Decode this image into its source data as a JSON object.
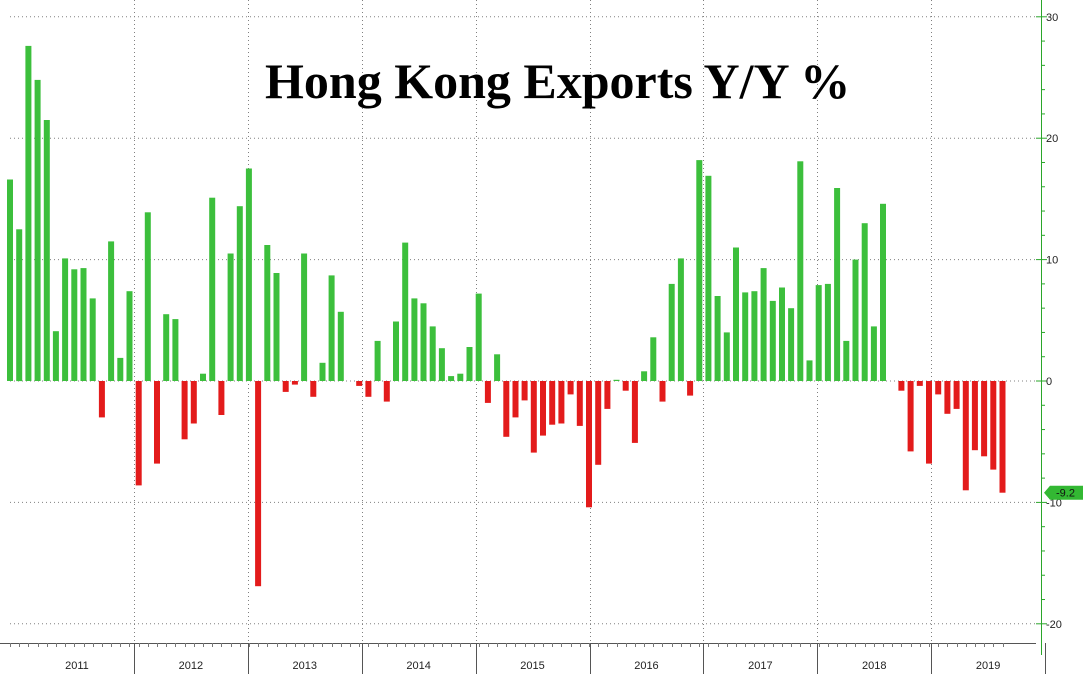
{
  "chart_data": {
    "type": "bar",
    "title": "Hong Kong Exports Y/Y %",
    "xlabel": "",
    "ylabel": "",
    "ylim": [
      -20,
      30
    ],
    "yticks": [
      30,
      20,
      10,
      0,
      -10,
      -20
    ],
    "x_year_labels": [
      "2011",
      "2012",
      "2013",
      "2014",
      "2015",
      "2016",
      "2017",
      "2018",
      "2019"
    ],
    "last_value_label": "-9.2",
    "colors": {
      "positive": "#3cbf3c",
      "negative": "#e31b1b",
      "axis": "#2aa62a",
      "marker": "#33b833"
    },
    "grid": true,
    "series": [
      {
        "values": [
          16.6,
          12.5,
          27.6,
          24.8,
          21.5,
          4.1,
          10.1,
          9.2,
          9.3,
          6.8,
          -3.0,
          11.5,
          1.9,
          7.4,
          -8.6,
          13.9,
          -6.8,
          5.5,
          5.1,
          -4.8,
          -3.5,
          0.6,
          15.1,
          -2.8,
          10.5,
          14.4,
          17.5,
          -16.9,
          11.2,
          8.9,
          -0.9,
          -0.3,
          10.5,
          -1.3,
          1.5,
          8.7,
          5.7,
          0.0,
          -0.4,
          -1.3,
          3.3,
          -1.7,
          4.9,
          11.4,
          6.8,
          6.4,
          4.5,
          2.7,
          0.4,
          0.6,
          2.8,
          7.2,
          -1.8,
          2.2,
          -4.6,
          -3.0,
          -1.6,
          -5.9,
          -4.5,
          -3.6,
          -3.5,
          -1.1,
          -3.7,
          -10.4,
          -6.9,
          -2.3,
          0.1,
          -0.8,
          -5.1,
          0.8,
          3.6,
          -1.7,
          8.0,
          10.1,
          -1.2,
          18.2,
          16.9,
          7.0,
          4.0,
          11.0,
          7.3,
          7.4,
          9.3,
          6.6,
          7.7,
          6.0,
          18.1,
          1.7,
          7.9,
          8.0,
          15.9,
          3.3,
          10.0,
          13.0,
          4.5,
          14.6,
          0.0,
          -0.8,
          -5.8,
          -0.4,
          -6.8,
          -1.1,
          -2.7,
          -2.3,
          -9.0,
          -5.7,
          -6.2,
          -7.3,
          -9.2
        ]
      }
    ]
  }
}
